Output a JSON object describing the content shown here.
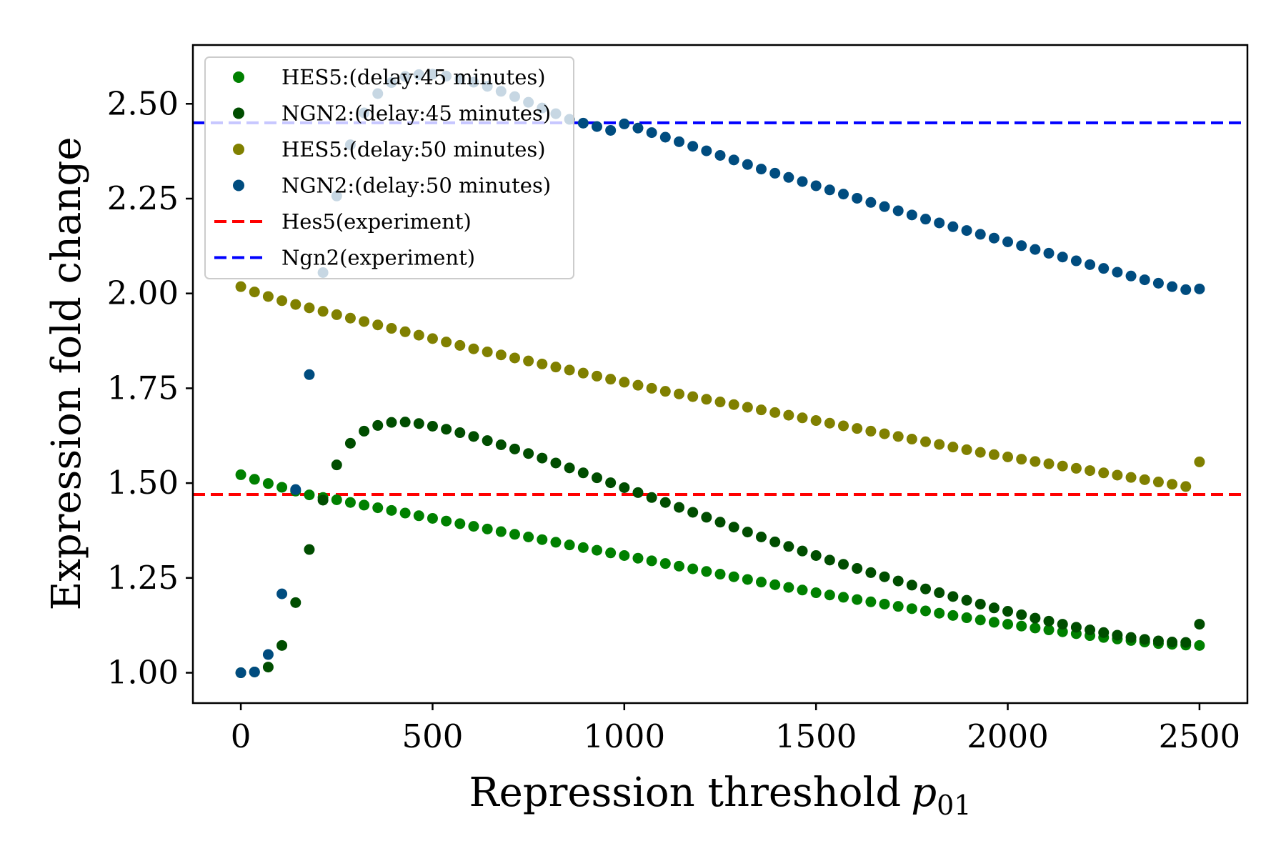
{
  "chart_data": {
    "type": "scatter",
    "title": "",
    "xlabel": "Repression threshold",
    "xlabel_symbol": "p",
    "xlabel_subscript": "01",
    "ylabel": "Expression fold change",
    "xlim": [
      -125,
      2625
    ],
    "ylim": [
      0.92,
      2.655
    ],
    "xticks": [
      0,
      500,
      1000,
      1500,
      2000,
      2500
    ],
    "xtick_labels": [
      "0",
      "500",
      "1000",
      "1500",
      "2000",
      "2500"
    ],
    "yticks": [
      1.0,
      1.25,
      1.5,
      1.75,
      2.0,
      2.25,
      2.5
    ],
    "ytick_labels": [
      "1.00",
      "1.25",
      "1.50",
      "1.75",
      "2.00",
      "2.25",
      "2.50"
    ],
    "grid": false,
    "legend_position": "top-left",
    "x": [
      0,
      35.7,
      71.4,
      107.1,
      142.9,
      178.6,
      214.3,
      250,
      285.7,
      321.4,
      357.1,
      392.9,
      428.6,
      464.3,
      500,
      535.7,
      571.4,
      607.1,
      642.9,
      678.6,
      714.3,
      750,
      785.7,
      821.4,
      857.1,
      892.9,
      928.6,
      964.3,
      1000,
      1035.7,
      1071.4,
      1107.1,
      1142.9,
      1178.6,
      1214.3,
      1250,
      1285.7,
      1321.4,
      1357.1,
      1392.9,
      1428.6,
      1464.3,
      1500,
      1535.7,
      1571.4,
      1607.1,
      1642.9,
      1678.6,
      1714.3,
      1750,
      1785.7,
      1821.4,
      1857.1,
      1892.9,
      1928.6,
      1964.3,
      2000,
      2035.7,
      2071.4,
      2107.1,
      2142.9,
      2178.6,
      2214.3,
      2250,
      2285.7,
      2321.4,
      2357.1,
      2392.9,
      2428.6,
      2464.3,
      2500
    ],
    "series": [
      {
        "name": "HES5:(delay:45 minutes)",
        "color": "#008000",
        "values": [
          1.522,
          1.51,
          1.499,
          1.489,
          1.479,
          1.469,
          1.462,
          1.456,
          1.449,
          1.442,
          1.435,
          1.428,
          1.421,
          1.414,
          1.407,
          1.4,
          1.393,
          1.386,
          1.379,
          1.372,
          1.365,
          1.358,
          1.351,
          1.344,
          1.337,
          1.33,
          1.323,
          1.316,
          1.309,
          1.302,
          1.295,
          1.288,
          1.281,
          1.274,
          1.267,
          1.26,
          1.253,
          1.246,
          1.239,
          1.232,
          1.225,
          1.218,
          1.211,
          1.205,
          1.199,
          1.193,
          1.187,
          1.181,
          1.175,
          1.169,
          1.163,
          1.157,
          1.151,
          1.145,
          1.139,
          1.133,
          1.128,
          1.123,
          1.118,
          1.113,
          1.108,
          1.103,
          1.098,
          1.093,
          1.089,
          1.085,
          1.081,
          1.077,
          1.075,
          1.073,
          1.072
        ]
      },
      {
        "name": "NGN2:(delay:45 minutes)",
        "color": "#004d00",
        "values": [
          1.0,
          1.002,
          1.015,
          1.072,
          1.185,
          1.325,
          1.455,
          1.548,
          1.605,
          1.637,
          1.652,
          1.66,
          1.661,
          1.657,
          1.65,
          1.642,
          1.633,
          1.623,
          1.612,
          1.601,
          1.59,
          1.578,
          1.566,
          1.553,
          1.54,
          1.527,
          1.514,
          1.501,
          1.488,
          1.475,
          1.462,
          1.449,
          1.436,
          1.423,
          1.41,
          1.397,
          1.384,
          1.371,
          1.358,
          1.345,
          1.333,
          1.321,
          1.309,
          1.297,
          1.286,
          1.275,
          1.264,
          1.253,
          1.242,
          1.231,
          1.221,
          1.211,
          1.201,
          1.191,
          1.181,
          1.171,
          1.162,
          1.153,
          1.144,
          1.136,
          1.128,
          1.12,
          1.113,
          1.106,
          1.099,
          1.093,
          1.088,
          1.084,
          1.081,
          1.08,
          1.128
        ]
      },
      {
        "name": "HES5:(delay:50 minutes)",
        "color": "#808000",
        "values": [
          2.018,
          2.004,
          1.992,
          1.981,
          1.971,
          1.962,
          1.953,
          1.944,
          1.935,
          1.926,
          1.917,
          1.908,
          1.899,
          1.89,
          1.881,
          1.872,
          1.863,
          1.854,
          1.846,
          1.838,
          1.83,
          1.822,
          1.814,
          1.806,
          1.798,
          1.79,
          1.782,
          1.774,
          1.766,
          1.758,
          1.75,
          1.742,
          1.735,
          1.728,
          1.721,
          1.714,
          1.707,
          1.7,
          1.693,
          1.686,
          1.679,
          1.672,
          1.665,
          1.658,
          1.651,
          1.644,
          1.637,
          1.63,
          1.623,
          1.616,
          1.609,
          1.602,
          1.595,
          1.588,
          1.581,
          1.575,
          1.569,
          1.563,
          1.557,
          1.551,
          1.545,
          1.539,
          1.533,
          1.527,
          1.521,
          1.515,
          1.509,
          1.503,
          1.497,
          1.491,
          1.556
        ]
      },
      {
        "name": "NGN2:(delay:50 minutes)",
        "color": "#004c7f",
        "values": [
          1.0,
          1.002,
          1.048,
          1.208,
          1.483,
          1.786,
          2.055,
          2.257,
          2.392,
          2.476,
          2.527,
          2.556,
          2.572,
          2.577,
          2.578,
          2.573,
          2.566,
          2.557,
          2.546,
          2.533,
          2.519,
          2.504,
          2.489,
          2.474,
          2.459,
          2.449,
          2.44,
          2.43,
          2.447,
          2.436,
          2.424,
          2.412,
          2.4,
          2.388,
          2.376,
          2.364,
          2.352,
          2.34,
          2.328,
          2.317,
          2.306,
          2.295,
          2.284,
          2.273,
          2.262,
          2.251,
          2.24,
          2.229,
          2.218,
          2.207,
          2.196,
          2.186,
          2.176,
          2.166,
          2.156,
          2.146,
          2.136,
          2.126,
          2.116,
          2.106,
          2.096,
          2.086,
          2.076,
          2.066,
          2.056,
          2.046,
          2.036,
          2.027,
          2.018,
          2.01,
          2.012
        ]
      }
    ],
    "reference_lines": [
      {
        "name": "Hes5(experiment)",
        "y": 1.47,
        "color": "#ff0000",
        "style": "dashed"
      },
      {
        "name": "Ngn2(experiment)",
        "y": 2.45,
        "color": "#0000ff",
        "style": "dashed"
      }
    ]
  }
}
